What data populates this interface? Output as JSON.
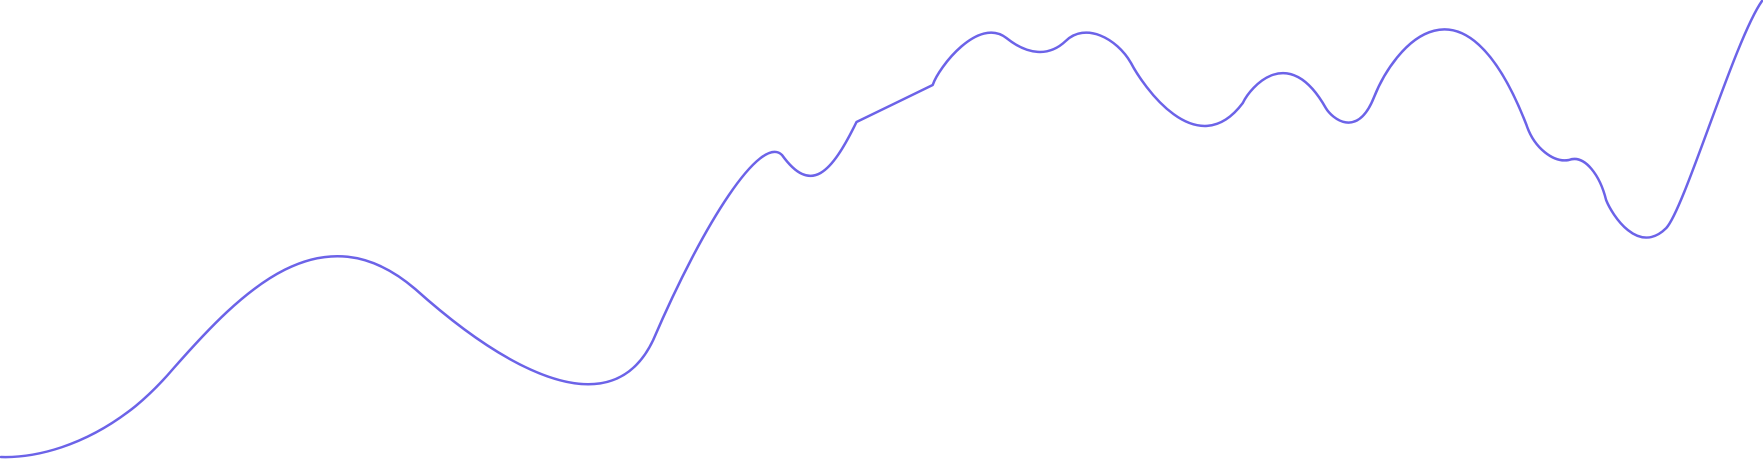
{
  "colors": {
    "background": "#ffffff",
    "line": "#6c63e8"
  }
}
